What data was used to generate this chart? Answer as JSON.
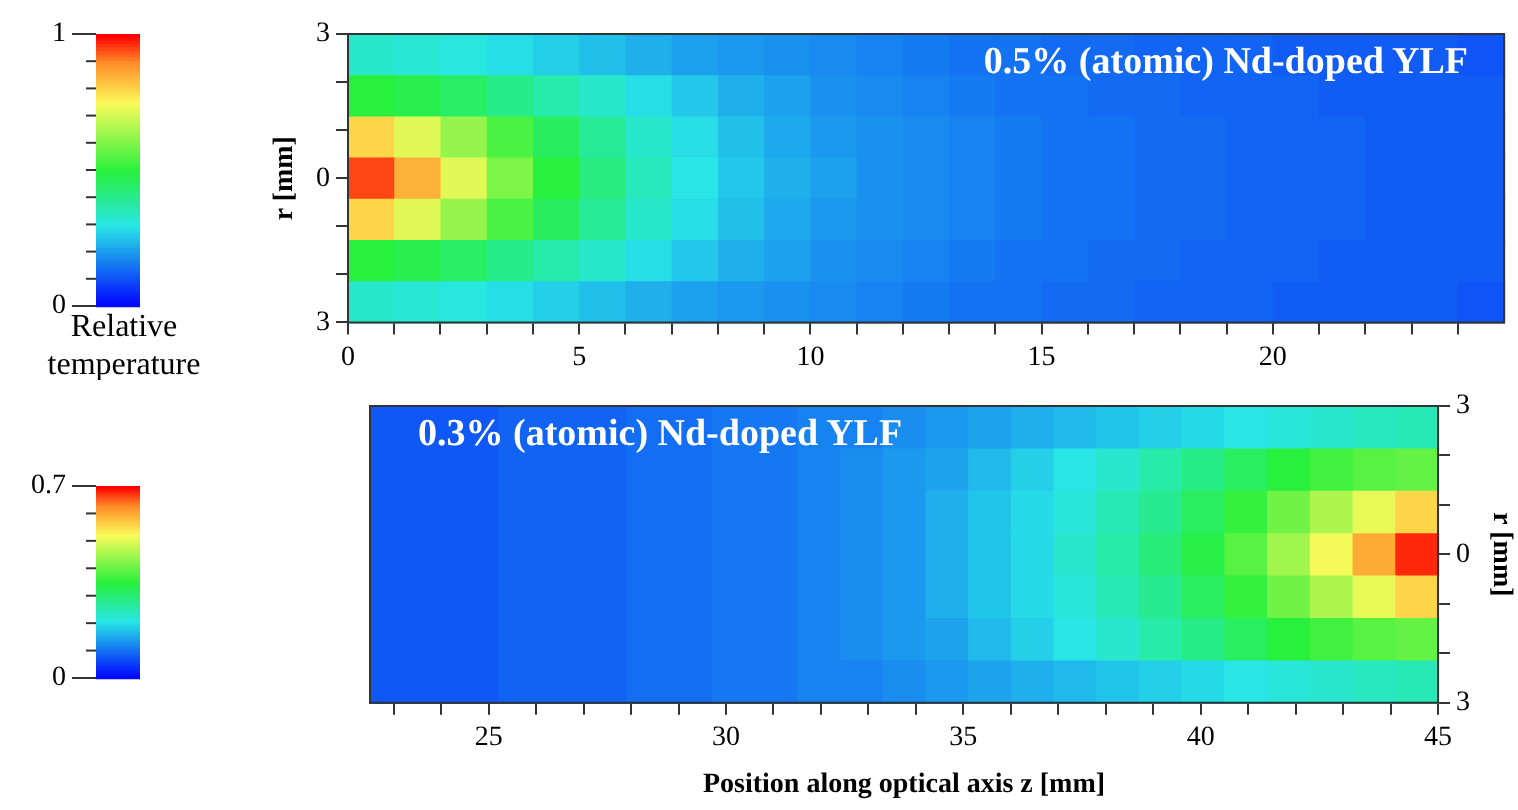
{
  "chart_data": [
    {
      "type": "heatmap",
      "title": "0.5% (atomic) Nd-doped YLF",
      "ylabel": "r [mm]",
      "clabel": "Relative temperature",
      "xlim": [
        0,
        25
      ],
      "xticks": [
        0,
        {
          "value": 1,
          "label": null
        },
        {
          "value": 2,
          "label": null
        },
        {
          "value": 3,
          "label": null
        },
        {
          "value": 4,
          "label": null
        },
        5,
        {
          "value": 6,
          "label": null
        },
        {
          "value": 7,
          "label": null
        },
        {
          "value": 8,
          "label": null
        },
        {
          "value": 9,
          "label": null
        },
        10,
        {
          "value": 11,
          "label": null
        },
        {
          "value": 12,
          "label": null
        },
        {
          "value": 13,
          "label": null
        },
        {
          "value": 14,
          "label": null
        },
        15,
        {
          "value": 16,
          "label": null
        },
        {
          "value": 17,
          "label": null
        },
        {
          "value": 18,
          "label": null
        },
        {
          "value": 19,
          "label": null
        },
        20,
        {
          "value": 21,
          "label": null
        },
        {
          "value": 22,
          "label": null
        },
        {
          "value": 23,
          "label": null
        },
        {
          "value": 24,
          "label": null
        }
      ],
      "ylim": [
        -3,
        3
      ],
      "yticks": [
        {
          "value": 3,
          "label": "3"
        },
        {
          "value": 2,
          "label": null
        },
        {
          "value": 1,
          "label": null
        },
        0,
        {
          "value": -1,
          "label": null
        },
        {
          "value": -2,
          "label": null
        },
        {
          "value": -3,
          "label": "3"
        }
      ],
      "clim": [
        0,
        1
      ],
      "cticks": [
        0,
        {
          "value": 0.1,
          "label": null
        },
        {
          "value": 0.2,
          "label": null
        },
        {
          "value": 0.3,
          "label": null
        },
        {
          "value": 0.4,
          "label": null
        },
        {
          "value": 0.5,
          "label": null
        },
        {
          "value": 0.6,
          "label": null
        },
        {
          "value": 0.7,
          "label": null
        },
        {
          "value": 0.8,
          "label": null
        },
        {
          "value": 0.9,
          "label": null
        },
        1
      ],
      "cells": [
        [
          0.33,
          0.32,
          0.31,
          0.29,
          0.27,
          0.25,
          0.23,
          0.21,
          0.2,
          0.19,
          0.18,
          0.17,
          0.16,
          0.15,
          0.15,
          0.14,
          0.14,
          0.13,
          0.13,
          0.13,
          0.12,
          0.12,
          0.12,
          0.12,
          0.11
        ],
        [
          0.5,
          0.48,
          0.45,
          0.41,
          0.37,
          0.33,
          0.29,
          0.26,
          0.23,
          0.21,
          0.19,
          0.18,
          0.17,
          0.16,
          0.15,
          0.15,
          0.14,
          0.14,
          0.13,
          0.13,
          0.13,
          0.12,
          0.12,
          0.12,
          0.12
        ],
        [
          0.8,
          0.72,
          0.63,
          0.54,
          0.46,
          0.39,
          0.33,
          0.29,
          0.25,
          0.22,
          0.2,
          0.19,
          0.18,
          0.17,
          0.16,
          0.15,
          0.15,
          0.14,
          0.14,
          0.13,
          0.13,
          0.13,
          0.12,
          0.12,
          0.12
        ],
        [
          0.95,
          0.85,
          0.72,
          0.6,
          0.5,
          0.42,
          0.35,
          0.3,
          0.26,
          0.23,
          0.21,
          0.19,
          0.18,
          0.17,
          0.16,
          0.15,
          0.15,
          0.14,
          0.14,
          0.13,
          0.13,
          0.13,
          0.12,
          0.12,
          0.12
        ],
        [
          0.8,
          0.72,
          0.63,
          0.54,
          0.46,
          0.39,
          0.33,
          0.29,
          0.25,
          0.22,
          0.2,
          0.19,
          0.18,
          0.17,
          0.16,
          0.15,
          0.15,
          0.14,
          0.14,
          0.13,
          0.13,
          0.13,
          0.12,
          0.12,
          0.12
        ],
        [
          0.5,
          0.48,
          0.45,
          0.41,
          0.37,
          0.33,
          0.29,
          0.26,
          0.23,
          0.21,
          0.19,
          0.18,
          0.17,
          0.16,
          0.15,
          0.15,
          0.14,
          0.14,
          0.13,
          0.13,
          0.13,
          0.12,
          0.12,
          0.12,
          0.12
        ],
        [
          0.33,
          0.32,
          0.31,
          0.29,
          0.27,
          0.25,
          0.23,
          0.21,
          0.2,
          0.19,
          0.18,
          0.17,
          0.16,
          0.15,
          0.15,
          0.14,
          0.14,
          0.13,
          0.13,
          0.13,
          0.12,
          0.12,
          0.12,
          0.12,
          0.11
        ]
      ]
    },
    {
      "type": "heatmap",
      "title": "0.3% (atomic) Nd-doped YLF",
      "xlabel": "Position along optical axis z [mm]",
      "ylabel": "r [mm]",
      "xlim": [
        22.5,
        45
      ],
      "xticks": [
        {
          "value": 23,
          "label": null
        },
        {
          "value": 24,
          "label": null
        },
        25,
        {
          "value": 26,
          "label": null
        },
        {
          "value": 27,
          "label": null
        },
        {
          "value": 28,
          "label": null
        },
        {
          "value": 29,
          "label": null
        },
        30,
        {
          "value": 31,
          "label": null
        },
        {
          "value": 32,
          "label": null
        },
        {
          "value": 33,
          "label": null
        },
        {
          "value": 34,
          "label": null
        },
        35,
        {
          "value": 36,
          "label": null
        },
        {
          "value": 37,
          "label": null
        },
        {
          "value": 38,
          "label": null
        },
        {
          "value": 39,
          "label": null
        },
        40,
        {
          "value": 41,
          "label": null
        },
        {
          "value": 42,
          "label": null
        },
        {
          "value": 43,
          "label": null
        },
        {
          "value": 44,
          "label": null
        },
        45
      ],
      "ylim": [
        -3,
        3
      ],
      "yticks": [
        {
          "value": 3,
          "label": "3"
        },
        {
          "value": 2,
          "label": null
        },
        {
          "value": 1,
          "label": null
        },
        0,
        {
          "value": -1,
          "label": null
        },
        {
          "value": -2,
          "label": null
        },
        {
          "value": -3,
          "label": "3"
        }
      ],
      "clim": [
        0,
        0.7
      ],
      "cticks": [
        0,
        {
          "value": 0.1,
          "label": null
        },
        {
          "value": 0.2,
          "label": null
        },
        {
          "value": 0.3,
          "label": null
        },
        {
          "value": 0.4,
          "label": null
        },
        {
          "value": 0.5,
          "label": null
        },
        {
          "value": 0.6,
          "label": null
        },
        0.7
      ],
      "cells": [
        [
          0.08,
          0.08,
          0.08,
          0.09,
          0.09,
          0.09,
          0.1,
          0.1,
          0.11,
          0.11,
          0.12,
          0.12,
          0.13,
          0.14,
          0.15,
          0.16,
          0.17,
          0.18,
          0.19,
          0.2,
          0.21,
          0.22,
          0.23,
          0.24,
          0.25
        ],
        [
          0.08,
          0.08,
          0.08,
          0.09,
          0.09,
          0.09,
          0.1,
          0.1,
          0.11,
          0.11,
          0.12,
          0.13,
          0.14,
          0.15,
          0.17,
          0.19,
          0.21,
          0.23,
          0.26,
          0.29,
          0.32,
          0.35,
          0.37,
          0.39,
          0.4
        ],
        [
          0.08,
          0.08,
          0.08,
          0.09,
          0.09,
          0.09,
          0.1,
          0.1,
          0.11,
          0.11,
          0.12,
          0.13,
          0.14,
          0.16,
          0.18,
          0.2,
          0.22,
          0.25,
          0.28,
          0.32,
          0.36,
          0.41,
          0.46,
          0.51,
          0.56
        ],
        [
          0.08,
          0.08,
          0.08,
          0.09,
          0.09,
          0.09,
          0.1,
          0.1,
          0.11,
          0.11,
          0.12,
          0.13,
          0.14,
          0.16,
          0.18,
          0.2,
          0.23,
          0.26,
          0.3,
          0.34,
          0.39,
          0.45,
          0.52,
          0.6,
          0.68
        ],
        [
          0.08,
          0.08,
          0.08,
          0.09,
          0.09,
          0.09,
          0.1,
          0.1,
          0.11,
          0.11,
          0.12,
          0.13,
          0.14,
          0.16,
          0.18,
          0.2,
          0.22,
          0.25,
          0.28,
          0.32,
          0.36,
          0.41,
          0.46,
          0.51,
          0.56
        ],
        [
          0.08,
          0.08,
          0.08,
          0.09,
          0.09,
          0.09,
          0.1,
          0.1,
          0.11,
          0.11,
          0.12,
          0.13,
          0.14,
          0.15,
          0.17,
          0.19,
          0.21,
          0.23,
          0.26,
          0.29,
          0.32,
          0.35,
          0.37,
          0.39,
          0.4
        ],
        [
          0.08,
          0.08,
          0.08,
          0.09,
          0.09,
          0.09,
          0.1,
          0.1,
          0.11,
          0.11,
          0.12,
          0.12,
          0.13,
          0.14,
          0.15,
          0.16,
          0.17,
          0.18,
          0.19,
          0.2,
          0.21,
          0.22,
          0.23,
          0.24,
          0.25
        ]
      ]
    }
  ]
}
